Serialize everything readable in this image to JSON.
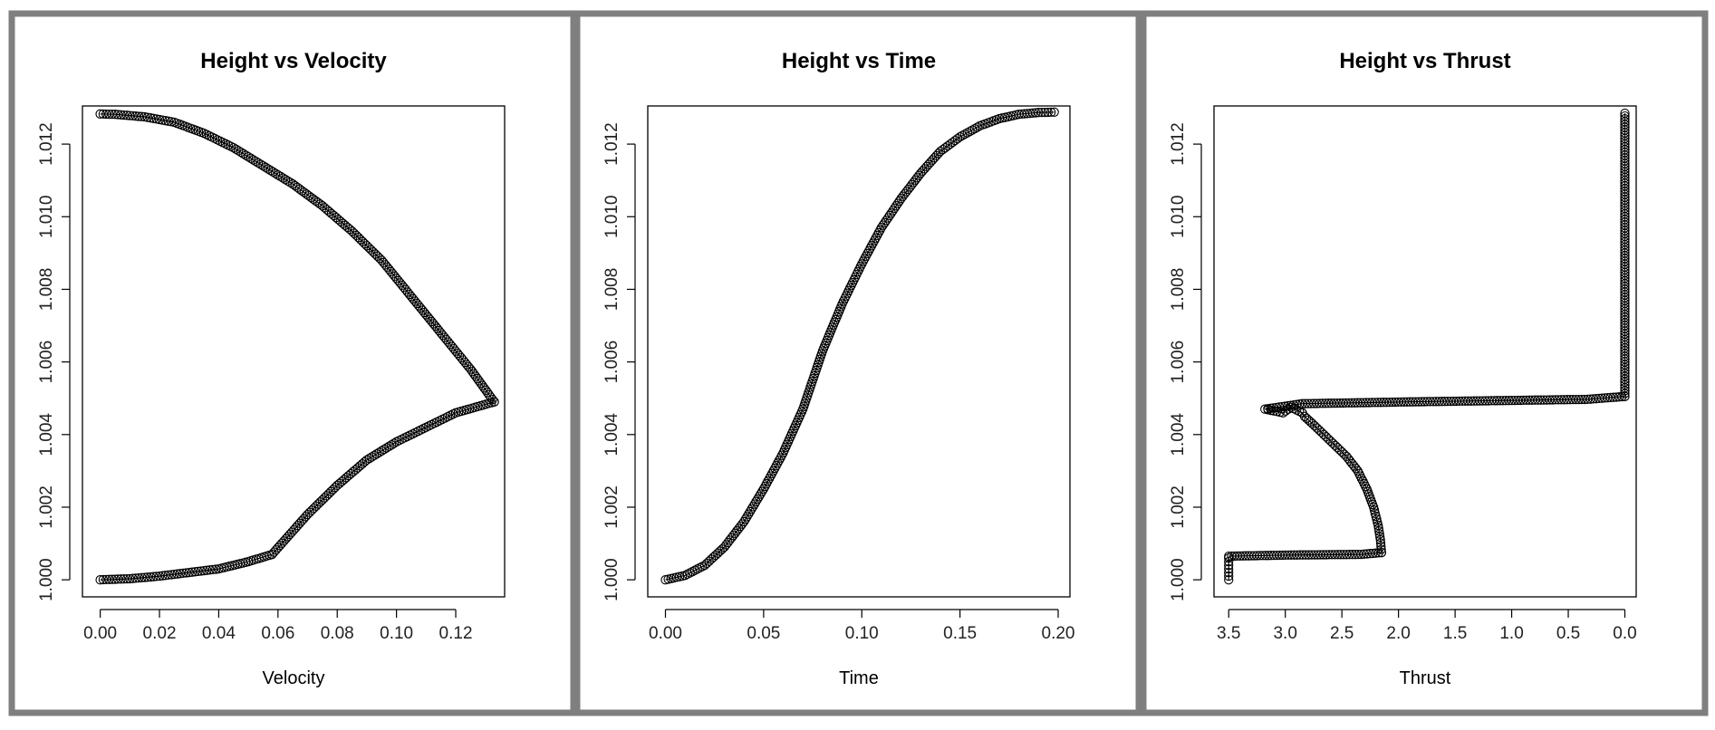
{
  "chart_data": [
    {
      "type": "scatter",
      "title": "Height vs Velocity",
      "xlabel": "Velocity",
      "ylabel": "",
      "xlim": [
        -0.006,
        0.1365
      ],
      "ylim": [
        0.99953,
        1.01305
      ],
      "x_ticks": [
        "0.00",
        "0.02",
        "0.04",
        "0.06",
        "0.08",
        "0.10",
        "0.12"
      ],
      "x_tick_values": [
        0.0,
        0.02,
        0.04,
        0.06,
        0.08,
        0.1,
        0.12
      ],
      "y_ticks": [
        "1.000",
        "1.002",
        "1.004",
        "1.006",
        "1.008",
        "1.010",
        "1.012"
      ],
      "y_tick_values": [
        1.0,
        1.002,
        1.004,
        1.006,
        1.008,
        1.01,
        1.012
      ],
      "series": [
        {
          "marker": "open-circle",
          "segments": [
            {
              "x": [
                0.0,
                0.01,
                0.02,
                0.03,
                0.04,
                0.05,
                0.058
              ],
              "y": [
                1.0,
                1.00003,
                1.0001,
                1.0002,
                1.0003,
                1.0005,
                1.0007
              ]
            },
            {
              "x": [
                0.058,
                0.07,
                0.08,
                0.09,
                0.1,
                0.11,
                0.12,
                0.133
              ],
              "y": [
                1.0007,
                1.0018,
                1.0026,
                1.0033,
                1.0038,
                1.0042,
                1.0046,
                1.0049
              ]
            },
            {
              "x": [
                0.133,
                0.125,
                0.115,
                0.105,
                0.095,
                0.085,
                0.075,
                0.065,
                0.055,
                0.045,
                0.035,
                0.025,
                0.015,
                0.005,
                0.0
              ],
              "y": [
                1.0049,
                1.0058,
                1.0068,
                1.0078,
                1.0088,
                1.0096,
                1.0103,
                1.0109,
                1.0114,
                1.0119,
                1.0123,
                1.0126,
                1.01275,
                1.01282,
                1.01283
              ]
            }
          ]
        }
      ]
    },
    {
      "type": "scatter",
      "title": "Height vs Time",
      "xlabel": "Time",
      "ylabel": "",
      "xlim": [
        -0.009,
        0.206
      ],
      "ylim": [
        0.99953,
        1.01305
      ],
      "x_ticks": [
        "0.00",
        "0.05",
        "0.10",
        "0.15",
        "0.20"
      ],
      "x_tick_values": [
        0.0,
        0.05,
        0.1,
        0.15,
        0.2
      ],
      "y_ticks": [
        "1.000",
        "1.002",
        "1.004",
        "1.006",
        "1.008",
        "1.010",
        "1.012"
      ],
      "y_tick_values": [
        1.0,
        1.002,
        1.004,
        1.006,
        1.008,
        1.01,
        1.012
      ],
      "series": [
        {
          "marker": "open-circle",
          "segments": [
            {
              "x": [
                0.0,
                0.01,
                0.02,
                0.03,
                0.04,
                0.05,
                0.06,
                0.07,
                0.08,
                0.09,
                0.1,
                0.11,
                0.12,
                0.13,
                0.14,
                0.15,
                0.16,
                0.17,
                0.18,
                0.19,
                0.198
              ],
              "y": [
                1.0,
                1.00012,
                1.0004,
                1.0009,
                1.0016,
                1.0025,
                1.0035,
                1.0047,
                1.0063,
                1.0076,
                1.0087,
                1.0097,
                1.0105,
                1.0112,
                1.0118,
                1.0122,
                1.0125,
                1.0127,
                1.01282,
                1.01287,
                1.01288
              ]
            }
          ]
        }
      ]
    },
    {
      "type": "scatter",
      "title": "Height vs Thrust",
      "xlabel": "Thrust",
      "ylabel": "",
      "xlim": [
        3.63,
        -0.1
      ],
      "ylim": [
        0.99953,
        1.01305
      ],
      "x_ticks": [
        "3.5",
        "3.0",
        "2.5",
        "2.0",
        "1.5",
        "1.0",
        "0.5",
        "0.0"
      ],
      "x_tick_values": [
        3.5,
        3.0,
        2.5,
        2.0,
        1.5,
        1.0,
        0.5,
        0.0
      ],
      "y_ticks": [
        "1.000",
        "1.002",
        "1.004",
        "1.006",
        "1.008",
        "1.010",
        "1.012"
      ],
      "y_tick_values": [
        1.0,
        1.002,
        1.004,
        1.006,
        1.008,
        1.01,
        1.012
      ],
      "series": [
        {
          "marker": "open-circle",
          "segments": [
            {
              "x": [
                3.5,
                3.5,
                3.5,
                3.5,
                3.5,
                3.5,
                3.5
              ],
              "y": [
                1.0,
                1.0001,
                1.0002,
                1.0003,
                1.0004,
                1.0005,
                1.0006
              ]
            },
            {
              "x": [
                3.5,
                3.0,
                2.33,
                2.15
              ],
              "y": [
                1.00065,
                1.00068,
                1.0007,
                1.00075
              ]
            },
            {
              "x": [
                2.15,
                2.16,
                2.18,
                2.22,
                2.28,
                2.36,
                2.46,
                2.56,
                2.66,
                2.76,
                2.83,
                2.85
              ],
              "y": [
                1.00075,
                1.0011,
                1.0015,
                1.002,
                1.0025,
                1.003,
                1.0034,
                1.0037,
                1.004,
                1.0043,
                1.0045,
                1.0046
              ]
            },
            {
              "x": [
                2.85,
                2.95,
                3.02,
                3.18,
                2.85,
                1.9,
                0.33,
                0.0
              ],
              "y": [
                1.0046,
                1.00475,
                1.0046,
                1.0047,
                1.00485,
                1.0049,
                1.00497,
                1.00505
              ]
            },
            {
              "x": [
                0.0,
                0.0,
                0.0,
                0.0,
                0.0,
                0.0,
                0.0,
                0.0,
                0.0
              ],
              "y": [
                1.00505,
                1.006,
                1.007,
                1.008,
                1.009,
                1.01,
                1.011,
                1.012,
                1.01285
              ]
            }
          ]
        }
      ]
    }
  ]
}
